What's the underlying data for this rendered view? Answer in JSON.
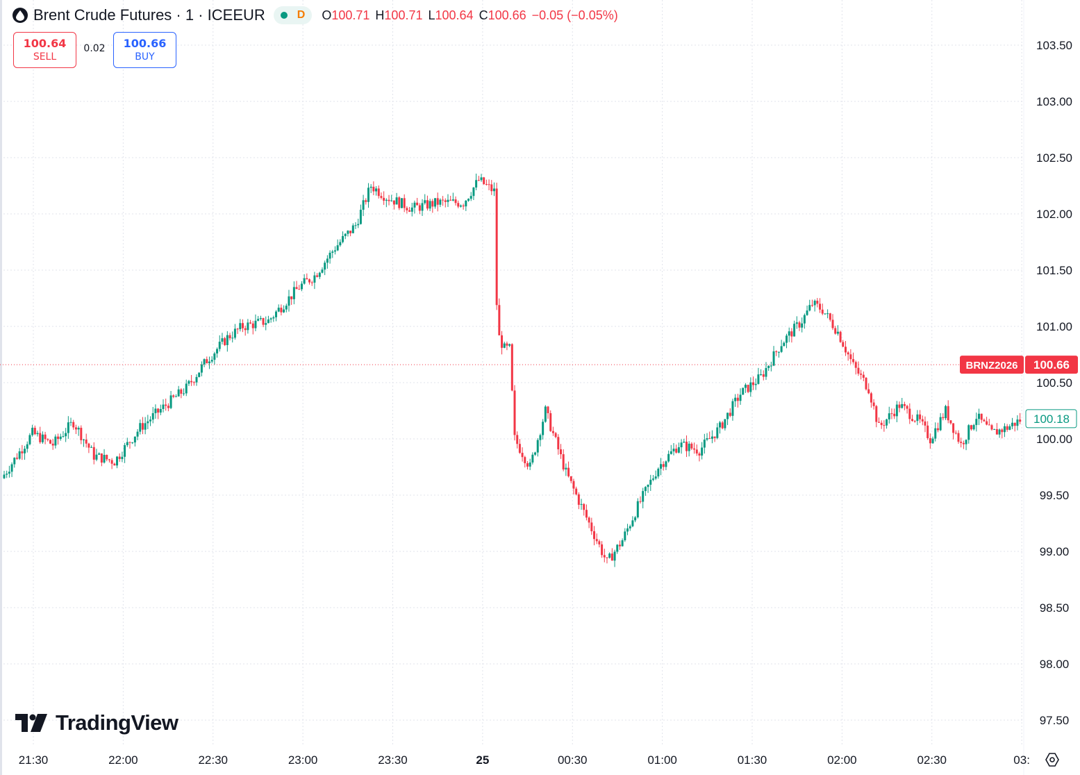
{
  "header": {
    "title": "Brent Crude Futures · 1 · ICEEUR",
    "status_letter": "D",
    "ohlc": [
      {
        "label": "O",
        "value": "100.71"
      },
      {
        "label": "H",
        "value": "100.71"
      },
      {
        "label": "L",
        "value": "100.64"
      },
      {
        "label": "C",
        "value": "100.66"
      }
    ],
    "change": "−0.05 (−0.05%)"
  },
  "trade": {
    "sell_price": "100.64",
    "sell_label": "SELL",
    "spread": "0.02",
    "buy_price": "100.66",
    "buy_label": "BUY"
  },
  "logo_text": "TradingView",
  "colors": {
    "up": "#089981",
    "down": "#f23645",
    "grid": "#e0e3eb",
    "text": "#131722",
    "buy": "#2962ff",
    "status": "#f57c00"
  },
  "chart_data": {
    "type": "candlestick",
    "symbol_label": "BRNZ2026",
    "last_price": 100.66,
    "last_price_label": "100.66",
    "marker_price": 100.18,
    "marker_label": "100.18",
    "ylim": [
      97.3,
      103.7
    ],
    "y_ticks": [
      "97.50",
      "98.00",
      "98.50",
      "99.00",
      "99.50",
      "100.00",
      "100.50",
      "101.00",
      "101.50",
      "102.00",
      "102.50",
      "103.00",
      "103.50"
    ],
    "x_ticks": [
      {
        "label": "21:30",
        "minute": 0
      },
      {
        "label": "22:00",
        "minute": 30
      },
      {
        "label": "22:30",
        "minute": 60
      },
      {
        "label": "23:00",
        "minute": 90
      },
      {
        "label": "23:30",
        "minute": 120
      },
      {
        "label": "25",
        "minute": 150
      },
      {
        "label": "00:30",
        "minute": 180
      },
      {
        "label": "01:00",
        "minute": 210
      },
      {
        "label": "01:30",
        "minute": 240
      },
      {
        "label": "02:00",
        "minute": 270
      },
      {
        "label": "02:30",
        "minute": 300
      },
      {
        "label": "03:",
        "minute": 330
      }
    ],
    "grid": true,
    "price_path": [
      [
        0,
        99.65
      ],
      [
        6,
        100.05
      ],
      [
        10,
        99.95
      ],
      [
        14,
        100.15
      ],
      [
        18,
        99.85
      ],
      [
        22,
        99.8
      ],
      [
        27,
        100.1
      ],
      [
        32,
        100.3
      ],
      [
        36,
        100.45
      ],
      [
        40,
        100.7
      ],
      [
        44,
        100.9
      ],
      [
        47,
        101.0
      ],
      [
        52,
        101.05
      ],
      [
        58,
        101.35
      ],
      [
        61,
        101.45
      ],
      [
        65,
        101.7
      ],
      [
        69,
        101.9
      ],
      [
        72,
        102.25
      ],
      [
        75,
        102.15
      ],
      [
        80,
        102.05
      ],
      [
        85,
        102.1
      ],
      [
        90,
        102.1
      ],
      [
        93,
        102.3
      ],
      [
        96,
        102.2
      ],
      [
        96.5,
        101.2
      ],
      [
        97,
        100.9
      ],
      [
        98,
        100.8
      ],
      [
        99,
        100.8
      ],
      [
        100,
        100.0
      ],
      [
        103,
        99.75
      ],
      [
        106,
        100.25
      ],
      [
        110,
        99.7
      ],
      [
        115,
        99.2
      ],
      [
        118,
        98.9
      ],
      [
        121,
        99.1
      ],
      [
        124,
        99.4
      ],
      [
        128,
        99.75
      ],
      [
        132,
        99.95
      ],
      [
        136,
        99.9
      ],
      [
        140,
        100.1
      ],
      [
        144,
        100.4
      ],
      [
        148,
        100.55
      ],
      [
        152,
        100.85
      ],
      [
        156,
        101.05
      ],
      [
        158,
        101.2
      ],
      [
        160,
        101.15
      ],
      [
        163,
        100.95
      ],
      [
        166,
        100.65
      ],
      [
        169,
        100.45
      ],
      [
        171,
        100.1
      ],
      [
        175,
        100.3
      ],
      [
        179,
        100.15
      ],
      [
        181,
        100.0
      ],
      [
        184,
        100.25
      ],
      [
        187,
        99.95
      ],
      [
        190,
        100.2
      ],
      [
        193,
        100.05
      ],
      [
        196,
        100.1
      ],
      [
        199,
        100.18
      ]
    ],
    "path_minutes_to_axis_scale": 1.66
  }
}
